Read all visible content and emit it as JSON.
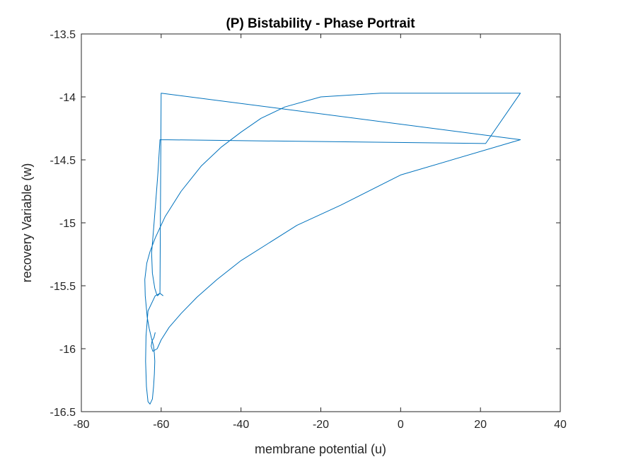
{
  "chart_data": {
    "type": "line",
    "title": "(P) Bistability - Phase Portrait",
    "xlabel": "membrane potential (u)",
    "ylabel": "recovery Variable (w)",
    "xlim": [
      -80,
      40
    ],
    "ylim": [
      -16.5,
      -13.5
    ],
    "xticks": [
      -80,
      -60,
      -40,
      -20,
      0,
      20,
      40
    ],
    "yticks": [
      -16.5,
      -16,
      -15.5,
      -15,
      -14.5,
      -14,
      -13.5
    ],
    "xtick_labels": [
      "-80",
      "-60",
      "-40",
      "-20",
      "0",
      "20",
      "40"
    ],
    "ytick_labels": [
      "-16.5",
      "-16",
      "-15.5",
      "-15",
      "-14.5",
      "-14",
      "-13.5"
    ],
    "grid": false,
    "line_color": "#0072BD",
    "series": [
      {
        "x": [
          -59.5,
          -60.3,
          -61.5,
          -63.3,
          -63.8,
          -63.9,
          -63.7,
          -63.3,
          -62.8,
          -62.2,
          -61.9,
          -61.7,
          -61.6,
          -61.7,
          -61.9,
          -62.4,
          -63.0,
          -63.5,
          -64.0,
          -64.1,
          -63.6,
          -62.8,
          -61.5,
          -59.0,
          -55.0,
          -50.0,
          -45.0,
          -40.0,
          -35.0,
          -29.0,
          -20.0,
          -5.0,
          30.0,
          21.3,
          -60.0,
          -60.3,
          -60.8,
          -61.4,
          -61.9,
          -62.4,
          -62.2,
          -61.6,
          -61.1,
          -60.9,
          -60.3,
          -60.0,
          30.0,
          0.0,
          -15.0,
          -26.0,
          -33.0,
          -40.0,
          -46.0,
          -51.0,
          -55.0,
          -58.0,
          -60.0,
          -61.0,
          -62.1,
          -62.5,
          -62.3,
          -61.8,
          -61.5
        ],
        "y": [
          -15.58,
          -15.56,
          -15.58,
          -15.7,
          -15.9,
          -16.1,
          -16.3,
          -16.42,
          -16.44,
          -16.4,
          -16.3,
          -16.2,
          -16.1,
          -16.04,
          -15.98,
          -15.92,
          -15.84,
          -15.75,
          -15.58,
          -15.45,
          -15.32,
          -15.23,
          -15.12,
          -14.95,
          -14.75,
          -14.55,
          -14.4,
          -14.28,
          -14.17,
          -14.08,
          -14.0,
          -13.97,
          -13.97,
          -14.37,
          -14.34,
          -14.34,
          -14.6,
          -14.85,
          -15.05,
          -15.24,
          -15.4,
          -15.52,
          -15.57,
          -15.58,
          -15.56,
          -13.97,
          -14.34,
          -14.62,
          -14.86,
          -15.02,
          -15.16,
          -15.3,
          -15.45,
          -15.59,
          -15.72,
          -15.83,
          -15.93,
          -16.0,
          -16.02,
          -15.98,
          -15.94,
          -15.91,
          -15.87
        ]
      }
    ]
  }
}
